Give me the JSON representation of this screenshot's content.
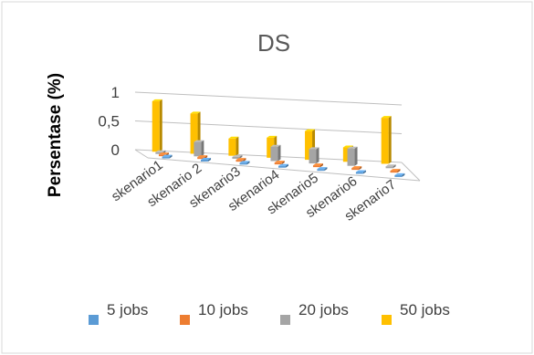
{
  "chart_data": {
    "type": "bar",
    "title": "DS",
    "ylabel": "Persentase (%)",
    "xlabel": "",
    "ylim": [
      0,
      1
    ],
    "yticks": [
      "0",
      "0,5",
      "1"
    ],
    "categories": [
      "skenario1",
      "skenario 2",
      "skenario3",
      "skenario4",
      "skenario5",
      "skenario6",
      "skenario7"
    ],
    "series": [
      {
        "name": "5 jobs",
        "color": "#5b9bd5",
        "values": [
          0.01,
          0.02,
          0.01,
          0.01,
          0.02,
          0.02,
          0.01
        ]
      },
      {
        "name": "10 jobs",
        "color": "#ed7d31",
        "values": [
          0.01,
          0.01,
          0.01,
          0.01,
          0.01,
          0.01,
          0.01
        ]
      },
      {
        "name": "20 jobs",
        "color": "#a5a5a5",
        "values": [
          0.0,
          0.25,
          0.0,
          0.25,
          0.25,
          0.3,
          0.0
        ]
      },
      {
        "name": "50 jobs",
        "color": "#ffc000",
        "values": [
          0.88,
          0.7,
          0.3,
          0.35,
          0.5,
          0.25,
          0.8
        ]
      }
    ],
    "grid": true,
    "legend_position": "bottom"
  }
}
